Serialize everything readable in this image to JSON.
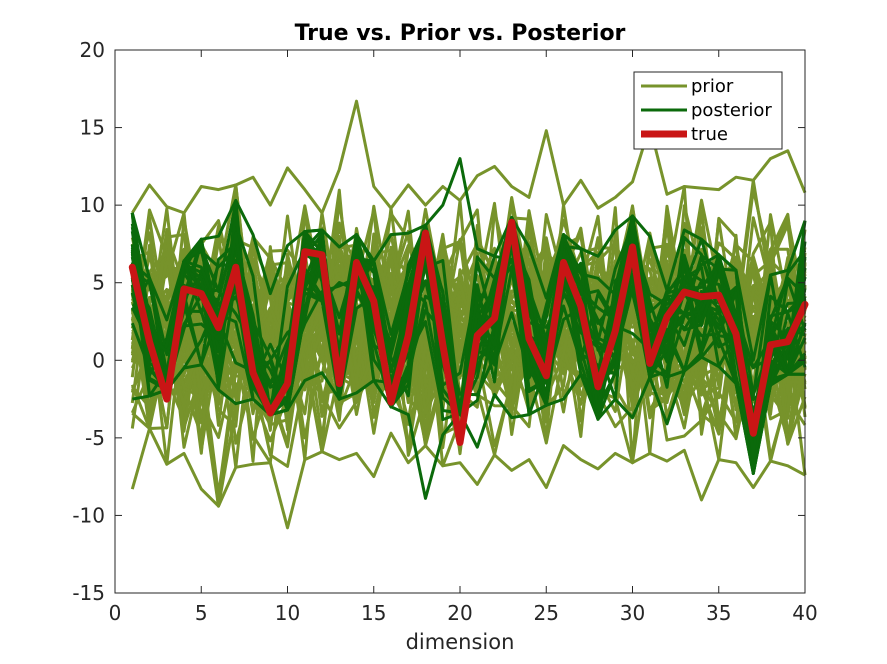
{
  "chart_data": {
    "type": "line",
    "title": "True vs. Prior vs. Posterior",
    "xlabel": "dimension",
    "ylabel": "",
    "xlim": [
      0,
      40
    ],
    "ylim": [
      -15,
      20
    ],
    "xticks": [
      0,
      5,
      10,
      15,
      20,
      25,
      30,
      35,
      40
    ],
    "yticks": [
      -15,
      -10,
      -5,
      0,
      5,
      10,
      15,
      20
    ],
    "grid": false,
    "legend_position": "top-right",
    "colors": {
      "prior": "#77932b",
      "posterior": "#0b6a0b",
      "true": "#c91515"
    },
    "x": [
      1,
      2,
      3,
      4,
      5,
      6,
      7,
      8,
      9,
      10,
      11,
      12,
      13,
      14,
      15,
      16,
      17,
      18,
      19,
      20,
      21,
      22,
      23,
      24,
      25,
      26,
      27,
      28,
      29,
      30,
      31,
      32,
      33,
      34,
      35,
      36,
      37,
      38,
      39,
      40
    ],
    "true": [
      6.0,
      1.2,
      -2.5,
      4.6,
      4.3,
      2.1,
      6.0,
      -0.8,
      -3.4,
      -1.5,
      7.0,
      6.8,
      -1.5,
      6.3,
      3.8,
      -2.7,
      1.6,
      8.2,
      1.0,
      -5.3,
      1.6,
      2.7,
      8.9,
      1.4,
      -1.0,
      6.3,
      3.5,
      -1.7,
      1.9,
      7.3,
      -0.2,
      2.8,
      4.4,
      4.1,
      4.2,
      1.7,
      -4.7,
      1.0,
      1.2,
      3.6
    ],
    "prior": {
      "label": "prior",
      "center": [
        1.5,
        2.0,
        2.5,
        2.0,
        1.8,
        2.0,
        2.2,
        2.4,
        1.6,
        1.8,
        2.0,
        2.6,
        2.1,
        2.4,
        1.9,
        2.0,
        2.3,
        1.8,
        2.0,
        2.1,
        2.4,
        2.0,
        2.3,
        2.2,
        2.0,
        2.4,
        2.1,
        2.0,
        2.2,
        2.0,
        2.1,
        2.3,
        2.4,
        2.0,
        2.2,
        2.0,
        2.1,
        2.0,
        2.2,
        2.0
      ],
      "spread": 3.4,
      "n_samples": 60,
      "max": [
        9.5,
        11.3,
        9.9,
        9.5,
        11.2,
        11.0,
        11.3,
        11.8,
        10.0,
        12.4,
        11.0,
        9.5,
        12.3,
        16.7,
        11.2,
        9.8,
        11.3,
        10.0,
        11.2,
        10.3,
        11.9,
        12.5,
        11.2,
        10.5,
        14.8,
        10.0,
        11.6,
        9.8,
        10.5,
        11.5,
        15.1,
        10.7,
        11.2,
        11.1,
        11.0,
        11.8,
        11.6,
        13.0,
        13.5,
        10.8
      ],
      "min": [
        -8.3,
        -4.4,
        -6.7,
        -6.0,
        -8.3,
        -9.4,
        -6.9,
        -6.7,
        -6.6,
        -10.8,
        -6.4,
        -5.9,
        -6.4,
        -6.0,
        -7.5,
        -4.7,
        -6.6,
        -5.5,
        -6.8,
        -6.6,
        -8.0,
        -6.1,
        -7.1,
        -6.4,
        -8.2,
        -5.5,
        -6.4,
        -7.0,
        -6.0,
        -6.6,
        -6.0,
        -6.5,
        -5.8,
        -9.0,
        -6.4,
        -6.6,
        -8.2,
        -6.5,
        -6.8,
        -7.4
      ]
    },
    "posterior": {
      "label": "posterior",
      "n_samples": 28,
      "spread": 2.4,
      "max": [
        9.5,
        5.3,
        2.6,
        6.4,
        7.8,
        8.0,
        10.3,
        8.1,
        4.3,
        7.4,
        8.3,
        8.4,
        7.3,
        8.1,
        6.4,
        8.1,
        8.2,
        8.7,
        10.0,
        13.0,
        7.2,
        6.7,
        9.2,
        7.3,
        4.0,
        8.1,
        7.2,
        6.7,
        8.4,
        9.3,
        8.0,
        4.5,
        8.4,
        7.8,
        6.8,
        5.8,
        0.0,
        5.5,
        5.8,
        9.0
      ],
      "min": [
        -2.5,
        -2.3,
        -1.9,
        -0.5,
        -0.3,
        -1.9,
        -2.8,
        -2.5,
        -3.5,
        -3.2,
        -1.3,
        -0.8,
        -2.5,
        -2.1,
        -1.3,
        -3.0,
        -3.5,
        -8.9,
        -4.8,
        -3.4,
        -5.6,
        -2.2,
        -3.7,
        -3.5,
        -2.9,
        -2.5,
        -0.9,
        -3.8,
        -2.5,
        -3.7,
        -1.1,
        -4.1,
        -0.7,
        0.2,
        -0.4,
        -1.5,
        -7.3,
        -1.6,
        -0.9,
        -0.9
      ]
    },
    "legend": [
      "prior",
      "posterior",
      "true"
    ]
  }
}
